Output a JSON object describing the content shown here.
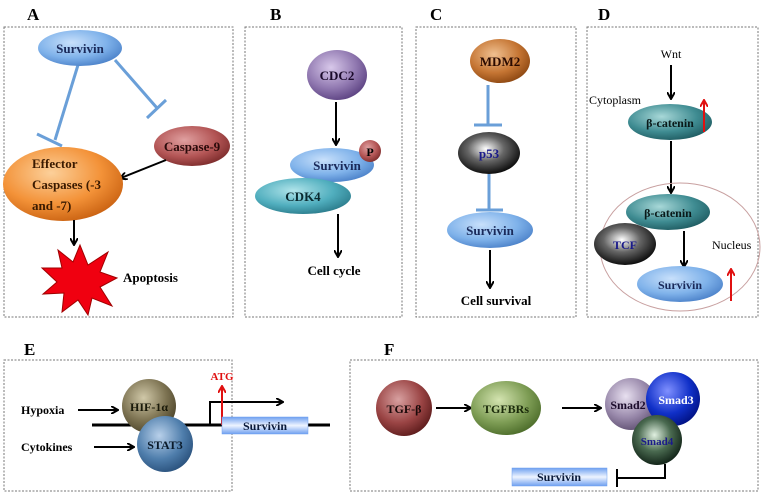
{
  "panels": {
    "A": {
      "label": "A",
      "survivin": "Survivin",
      "caspase9": "Caspase-9",
      "effector_line1": "Effector",
      "effector_line2": "Caspases (-3",
      "effector_line3": "and -7)",
      "apoptosis": "Apoptosis"
    },
    "B": {
      "label": "B",
      "cdc2": "CDC2",
      "survivin": "Survivin",
      "p": "P",
      "cdk4": "CDK4",
      "cell_cycle": "Cell cycle"
    },
    "C": {
      "label": "C",
      "mdm2": "MDM2",
      "p53": "p53",
      "survivin": "Survivin",
      "cell_survival": "Cell survival"
    },
    "D": {
      "label": "D",
      "wnt": "Wnt",
      "cytoplasm": "Cytoplasm",
      "bcatenin1": "β-catenin",
      "bcatenin2": "β-catenin",
      "tcf": "TCF",
      "nucleus": "Nucleus",
      "survivin": "Survivin"
    },
    "E": {
      "label": "E",
      "hypoxia": "Hypoxia",
      "hif": "HIF-1α",
      "cytokines": "Cytokines",
      "stat3": "STAT3",
      "atg": "ATG",
      "survivin": "Survivin"
    },
    "F": {
      "label": "F",
      "tgfb": "TGF-β",
      "tgfbrs": "TGFBRs",
      "smad2": "Smad2",
      "smad3": "Smad3",
      "smad4": "Smad4",
      "survivin": "Survivin"
    }
  },
  "colors": {
    "inhibition": "#6a9fd8",
    "upregulation": "#e01010",
    "arrow": "#000000"
  }
}
